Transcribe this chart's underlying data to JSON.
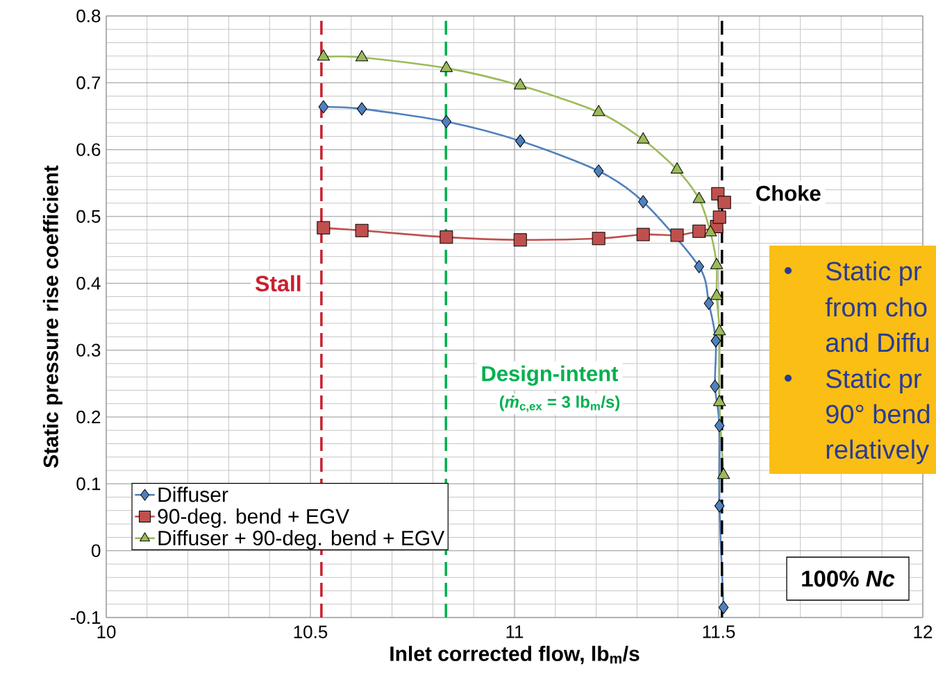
{
  "chart_data": {
    "type": "line",
    "xlabel": "Inlet corrected flow, lb$_{m}$/s",
    "ylabel": "Static pressure rise coefficient",
    "xlim": [
      10,
      12
    ],
    "xticks": [
      10,
      10.5,
      11,
      11.5,
      12
    ],
    "ylim": [
      -0.1,
      0.8
    ],
    "yticks": [
      -0.1,
      0,
      0.1,
      0.2,
      0.3,
      0.4,
      0.5,
      0.6,
      0.7,
      0.8
    ],
    "grid": true,
    "legend": "bottom left",
    "series": [
      {
        "name": "Diffuser",
        "color": "#4f81bd",
        "marker": "diamond",
        "x": [
          10.532,
          10.626,
          10.833,
          11.014,
          11.206,
          11.315,
          11.452,
          11.476,
          11.493,
          11.491,
          11.502,
          11.502,
          11.512
        ],
        "values": [
          0.664,
          0.661,
          0.642,
          0.613,
          0.568,
          0.522,
          0.425,
          0.37,
          0.314,
          0.246,
          0.187,
          0.067,
          -0.085
        ]
      },
      {
        "name": "90-deg. bend + EGV",
        "color": "#c0504d",
        "marker": "square",
        "x": [
          10.532,
          10.626,
          10.833,
          11.014,
          11.206,
          11.315,
          11.398,
          11.452,
          11.495,
          11.502,
          11.498,
          11.514
        ],
        "values": [
          0.483,
          0.479,
          0.469,
          0.465,
          0.467,
          0.473,
          0.472,
          0.478,
          0.485,
          0.499,
          0.534,
          0.521
        ]
      },
      {
        "name": "Diffuser + 90-deg. bend + EGV",
        "color": "#9bbb59",
        "marker": "triangle",
        "x": [
          10.532,
          10.626,
          10.833,
          11.014,
          11.206,
          11.315,
          11.398,
          11.452,
          11.48,
          11.495,
          11.495,
          11.502,
          11.502,
          11.512
        ],
        "values": [
          0.739,
          0.738,
          0.722,
          0.696,
          0.656,
          0.615,
          0.57,
          0.526,
          0.476,
          0.427,
          0.381,
          0.328,
          0.222,
          0.113
        ]
      }
    ],
    "ref_lines": [
      {
        "axis": "x",
        "value": 10.527,
        "label": "Stall",
        "color": "#c8202f",
        "line_style": "dashed"
      },
      {
        "axis": "x",
        "value": 10.832,
        "label": "Design-intent",
        "color": "#00b050",
        "line_style": "dashed"
      },
      {
        "axis": "x",
        "value": 11.508,
        "label": "Choke",
        "color": "#000000",
        "line_style": "dashed"
      }
    ],
    "annotations": [
      "(*ṁ*$_{c,ex}$ = 3 lb$_{m}$/s)",
      "100% *Nc*",
      "Static pr",
      "from cho",
      "and Diffu",
      "Static pr",
      "90° bend",
      "relatively"
    ]
  }
}
